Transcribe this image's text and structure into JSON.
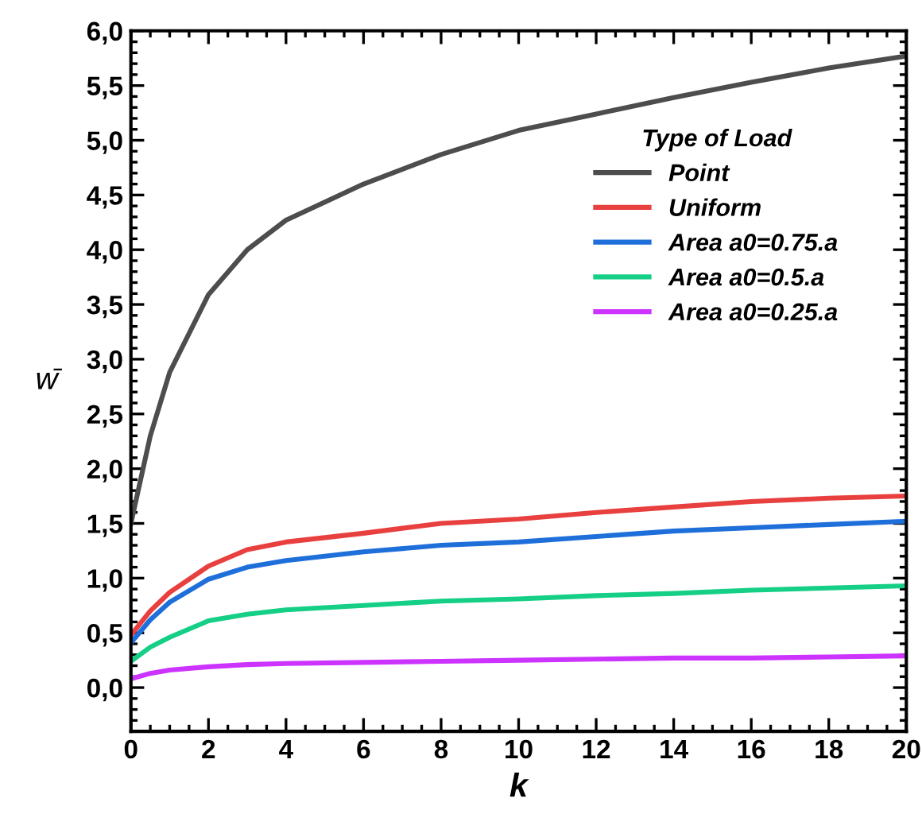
{
  "chart_data": {
    "type": "line",
    "xlabel": "k",
    "ylabel": "w̄",
    "legend_title": "Type of Load",
    "legend": "right",
    "x": [
      0,
      0.5,
      1,
      2,
      3,
      4,
      6,
      8,
      10,
      12,
      14,
      16,
      18,
      20
    ],
    "series": [
      {
        "name": "Point",
        "color": "#4d4d4d",
        "values": [
          1.5,
          2.3,
          2.88,
          3.59,
          4.0,
          4.27,
          4.6,
          4.87,
          5.09,
          5.24,
          5.39,
          5.53,
          5.66,
          5.77
        ]
      },
      {
        "name": "Uniform",
        "color": "#e8403f",
        "values": [
          0.48,
          0.7,
          0.87,
          1.11,
          1.26,
          1.33,
          1.41,
          1.5,
          1.54,
          1.6,
          1.65,
          1.7,
          1.73,
          1.75
        ]
      },
      {
        "name": "Area a0=0.75.a",
        "color": "#1f6fdb",
        "values": [
          0.41,
          0.62,
          0.78,
          0.99,
          1.1,
          1.16,
          1.24,
          1.3,
          1.33,
          1.38,
          1.43,
          1.46,
          1.49,
          1.52
        ]
      },
      {
        "name": "Area a0=0.5.a",
        "color": "#16cf86",
        "values": [
          0.24,
          0.37,
          0.46,
          0.61,
          0.67,
          0.71,
          0.75,
          0.79,
          0.81,
          0.84,
          0.86,
          0.89,
          0.91,
          0.93
        ]
      },
      {
        "name": "Area a0=0.25.a",
        "color": "#cc33ff",
        "values": [
          0.08,
          0.13,
          0.16,
          0.19,
          0.21,
          0.22,
          0.23,
          0.24,
          0.25,
          0.26,
          0.27,
          0.27,
          0.28,
          0.29
        ]
      }
    ],
    "xlim": [
      0,
      20
    ],
    "xticks": [
      0,
      2,
      4,
      6,
      8,
      10,
      12,
      14,
      16,
      18,
      20
    ],
    "ylim": [
      -0.4,
      6.0
    ],
    "yticks": [
      {
        "value": 0,
        "label": "0,0"
      },
      {
        "value": 0.5,
        "label": "0,5"
      },
      {
        "value": 1,
        "label": "1,0"
      },
      {
        "value": 1.5,
        "label": "1,5"
      },
      {
        "value": 2,
        "label": "2,0"
      },
      {
        "value": 2.5,
        "label": "2,5"
      },
      {
        "value": 3,
        "label": "3,0"
      },
      {
        "value": 3.5,
        "label": "3,5"
      },
      {
        "value": 4,
        "label": "4,0"
      },
      {
        "value": 4.5,
        "label": "4,5"
      },
      {
        "value": 5,
        "label": "5,0"
      },
      {
        "value": 5.5,
        "label": "5,5"
      },
      {
        "value": 6,
        "label": "6,0"
      }
    ],
    "grid": false,
    "marker": "none",
    "line_style": "solid"
  }
}
